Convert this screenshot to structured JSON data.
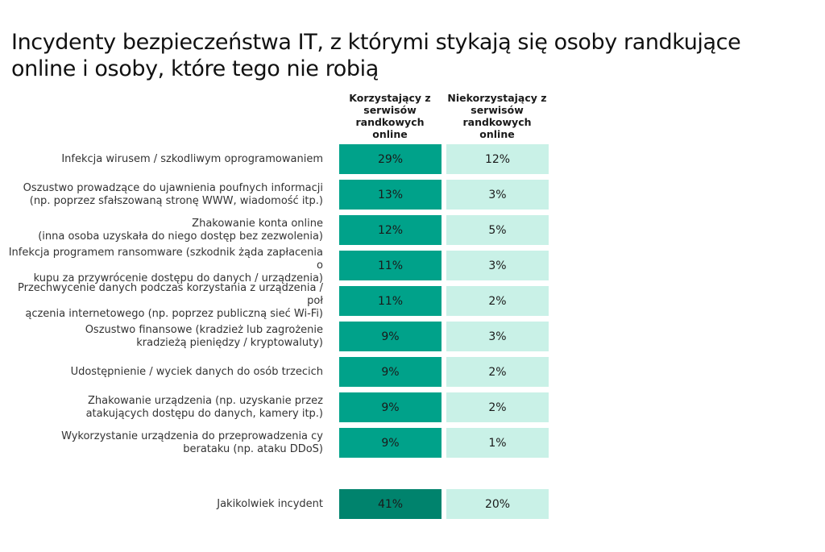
{
  "title": "Incydenty bezpieczeństwa IT, z którymi stykają się osoby randkujące online i osoby, które tego nie robią",
  "colors": {
    "users": "#00a28a",
    "users_total": "#00836d",
    "non_users": "#c9f1e7"
  },
  "chart_data": {
    "type": "table",
    "columns": [
      "Korzystający z serwisów randkowych online",
      "Niekorzystający z serwisów randkowych online"
    ],
    "rows": [
      {
        "label": "Infekcja wirusem / szkodliwym oprogramowaniem",
        "values": [
          "29%",
          "12%"
        ]
      },
      {
        "label": "Oszustwo prowadzące do ujawnienia poufnych informacji (np. poprzez sfałszowaną stronę WWW, wiadomość itp.)",
        "values": [
          "13%",
          "3%"
        ]
      },
      {
        "label": "Zhakowanie konta online (inna osoba uzyskała do niego dostęp bez zezwolenia)",
        "values": [
          "12%",
          "5%"
        ]
      },
      {
        "label": "Infekcja programem ransomware (szkodnik żąda zapłacenia okupu za przywrócenie dostępu do danych / urządzenia)",
        "values": [
          "11%",
          "3%"
        ]
      },
      {
        "label": "Przechwycenie danych podczas korzystania z urządzenia / połączenia internetowego (np. poprzez publiczną sieć Wi-Fi)",
        "values": [
          "11%",
          "2%"
        ]
      },
      {
        "label": "Oszustwo finansowe (kradzież lub zagrożenie kradzieżą pieniędzy / kryptowaluty)",
        "values": [
          "9%",
          "3%"
        ]
      },
      {
        "label": "Udostępnienie / wyciek danych do osób trzecich",
        "values": [
          "9%",
          "2%"
        ]
      },
      {
        "label": "Zhakowanie urządzenia (np. uzyskanie przez atakujących dostępu do danych, kamery itp.)",
        "values": [
          "9%",
          "2%"
        ]
      },
      {
        "label": "Wykorzystanie urządzenia do przeprowadzenia cyberataku (np. ataku DDoS)",
        "values": [
          "9%",
          "1%"
        ]
      }
    ],
    "total": {
      "label": "Jakikolwiek incydent",
      "values": [
        "41%",
        "20%"
      ]
    }
  }
}
